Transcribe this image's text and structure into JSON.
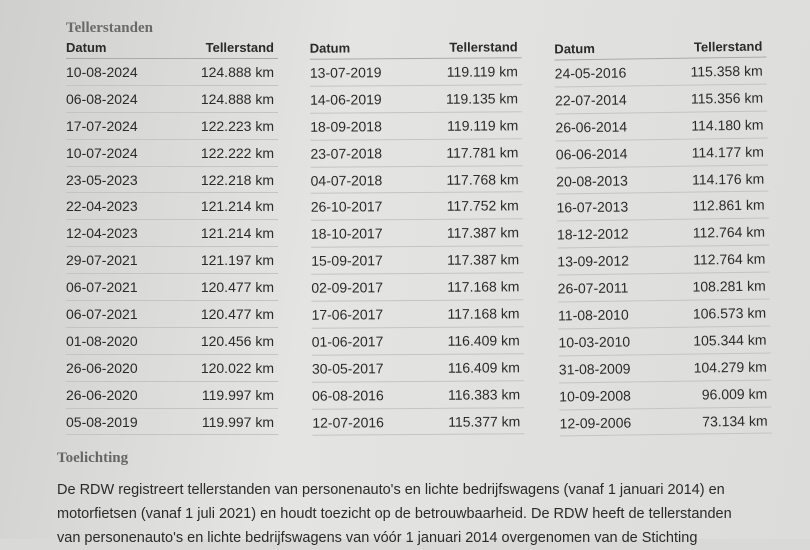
{
  "title": "Tellerstanden",
  "tables": [
    {
      "headers": [
        "Datum",
        "Tellerstand"
      ],
      "rows": [
        [
          "10-08-2024",
          "124.888 km"
        ],
        [
          "06-08-2024",
          "124.888 km"
        ],
        [
          "17-07-2024",
          "122.223 km"
        ],
        [
          "10-07-2024",
          "122.222 km"
        ],
        [
          "23-05-2023",
          "122.218 km"
        ],
        [
          "22-04-2023",
          "121.214 km"
        ],
        [
          "12-04-2023",
          "121.214 km"
        ],
        [
          "29-07-2021",
          "121.197 km"
        ],
        [
          "06-07-2021",
          "120.477 km"
        ],
        [
          "06-07-2021",
          "120.477 km"
        ],
        [
          "01-08-2020",
          "120.456 km"
        ],
        [
          "26-06-2020",
          "120.022 km"
        ],
        [
          "26-06-2020",
          "119.997 km"
        ],
        [
          "05-08-2019",
          "119.997 km"
        ]
      ]
    },
    {
      "headers": [
        "Datum",
        "Tellerstand"
      ],
      "rows": [
        [
          "13-07-2019",
          "119.119 km"
        ],
        [
          "14-06-2019",
          "119.135 km"
        ],
        [
          "18-09-2018",
          "119.119 km"
        ],
        [
          "23-07-2018",
          "117.781 km"
        ],
        [
          "04-07-2018",
          "117.768 km"
        ],
        [
          "26-10-2017",
          "117.752 km"
        ],
        [
          "18-10-2017",
          "117.387 km"
        ],
        [
          "15-09-2017",
          "117.387 km"
        ],
        [
          "02-09-2017",
          "117.168 km"
        ],
        [
          "17-06-2017",
          "117.168 km"
        ],
        [
          "01-06-2017",
          "116.409 km"
        ],
        [
          "30-05-2017",
          "116.409 km"
        ],
        [
          "06-08-2016",
          "116.383 km"
        ],
        [
          "12-07-2016",
          "115.377 km"
        ]
      ]
    },
    {
      "headers": [
        "Datum",
        "Tellerstand"
      ],
      "rows": [
        [
          "24-05-2016",
          "115.358 km"
        ],
        [
          "22-07-2014",
          "115.356 km"
        ],
        [
          "26-06-2014",
          "114.180 km"
        ],
        [
          "06-06-2014",
          "114.177 km"
        ],
        [
          "20-08-2013",
          "114.176 km"
        ],
        [
          "16-07-2013",
          "112.861 km"
        ],
        [
          "18-12-2012",
          "112.764 km"
        ],
        [
          "13-09-2012",
          "112.764 km"
        ],
        [
          "26-07-2011",
          "108.281 km"
        ],
        [
          "11-08-2010",
          "106.573 km"
        ],
        [
          "10-03-2010",
          "105.344 km"
        ],
        [
          "31-08-2009",
          "104.279 km"
        ],
        [
          "10-09-2008",
          "96.009 km"
        ],
        [
          "12-09-2006",
          "73.134 km"
        ]
      ]
    }
  ],
  "explanation": {
    "heading": "Toelichting",
    "lines": [
      "De RDW registreert tellerstanden van personenauto's en lichte bedrijfswagens (vanaf 1 januari 2014) en",
      "motorfietsen (vanaf 1 juli 2021) en houdt toezicht op de betrouwbaarheid. De RDW heeft de tellerstanden",
      "van personenauto's en lichte bedrijfswagens van vóór 1 januari 2014 overgenomen van de Stichting"
    ]
  }
}
